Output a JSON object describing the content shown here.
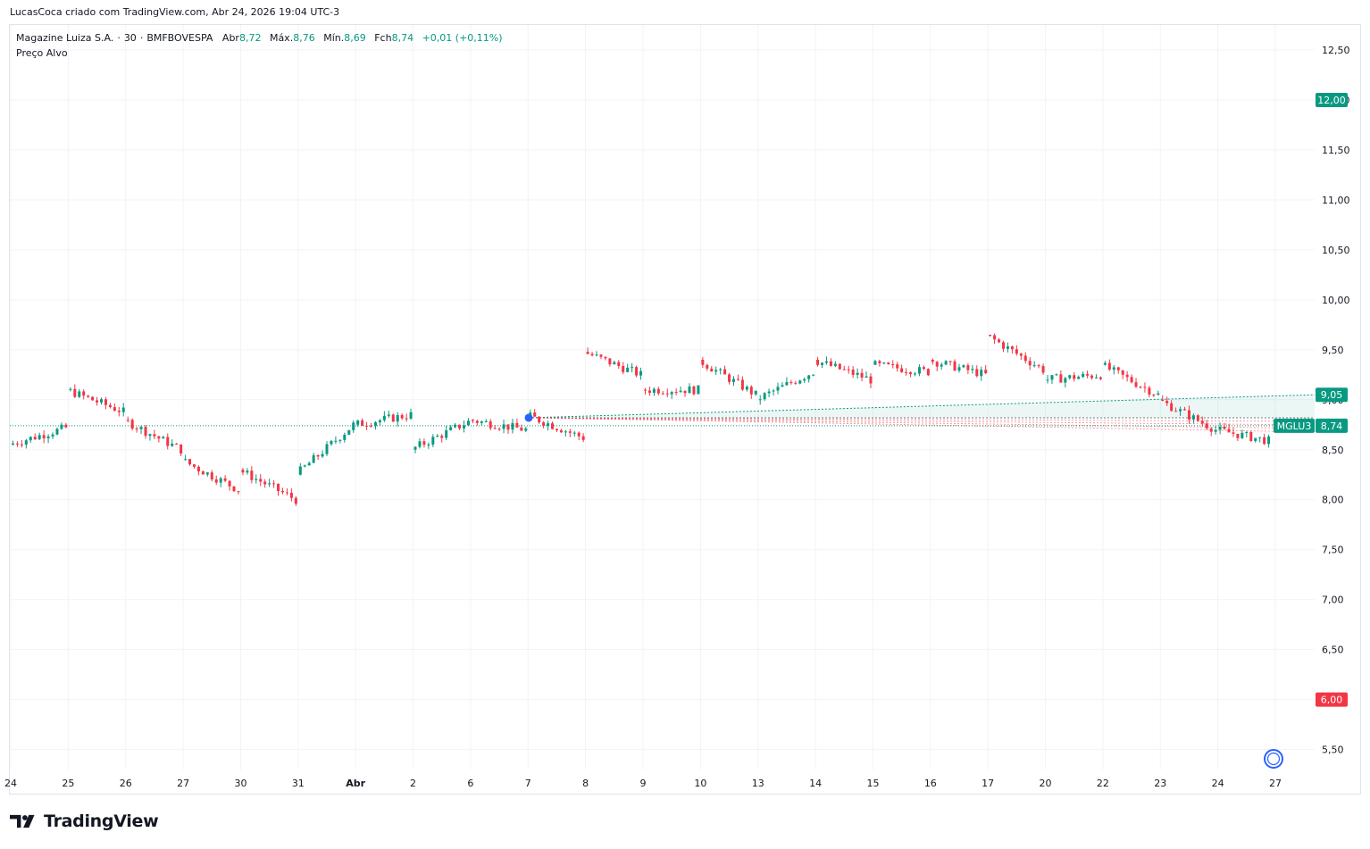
{
  "header": {
    "attribution": "LucasCoca criado com TradingView.com, Abr 24, 2026 19:04 UTC-3"
  },
  "legend": {
    "symbol_name": "Magazine Luiza S.A.",
    "interval": "30",
    "exchange": "BMFBOVESPA",
    "open_label": "Abr",
    "open_value": "8,72",
    "high_label": "Máx.",
    "high_value": "8,76",
    "low_label": "Mín.",
    "low_value": "8,69",
    "close_label": "Fch",
    "close_value": "8,74",
    "change": "+0,01 (+0,11%)",
    "indicator": "Preço Alvo"
  },
  "brand": {
    "name": "TradingView"
  },
  "colors": {
    "up": "#089981",
    "down": "#f23645",
    "grid": "#f0f3fa",
    "target_up": "#089981",
    "target_down": "#f23645",
    "marker": "#2962ff"
  },
  "chart_data": {
    "type": "candlestick",
    "symbol": "MGLU3",
    "ylim": [
      5.3,
      12.75
    ],
    "y_ticks": [
      "12,50",
      "12,00",
      "11,50",
      "11,00",
      "10,50",
      "10,00",
      "9,50",
      "9,00",
      "8,50",
      "8,00",
      "7,50",
      "7,00",
      "6,50",
      "6,00",
      "5,50"
    ],
    "y_tick_values": [
      12.5,
      12.0,
      11.5,
      11.0,
      10.5,
      10.0,
      9.5,
      9.0,
      8.5,
      8.0,
      7.5,
      7.0,
      6.5,
      6.0,
      5.5
    ],
    "x_ticks": [
      "24",
      "25",
      "26",
      "27",
      "30",
      "31",
      "Abr",
      "2",
      "6",
      "7",
      "8",
      "9",
      "10",
      "13",
      "14",
      "15",
      "16",
      "17",
      "20",
      "22",
      "23",
      "24",
      "27"
    ],
    "last_price": 8.74,
    "last_price_label": "8,74",
    "symbol_label": "MGLU3",
    "target_high": 12.0,
    "target_high_label": "12,00",
    "target_avg": 9.05,
    "target_avg_label": "9,05",
    "target_low": 6.0,
    "target_low_label": "6,00",
    "target_start_price": 8.82,
    "daily_path": [
      {
        "day": "24",
        "o": 8.55,
        "c": 8.72
      },
      {
        "day": "25",
        "o": 9.1,
        "c": 8.88
      },
      {
        "day": "26",
        "o": 8.8,
        "c": 8.5
      },
      {
        "day": "27",
        "o": 8.4,
        "c": 8.1
      },
      {
        "day": "30",
        "o": 8.3,
        "c": 8.0
      },
      {
        "day": "31",
        "o": 8.25,
        "c": 8.75
      },
      {
        "day": "Abr",
        "o": 8.75,
        "c": 8.85
      },
      {
        "day": "2",
        "o": 8.5,
        "c": 8.78
      },
      {
        "day": "6",
        "o": 8.8,
        "c": 8.7
      },
      {
        "day": "7",
        "o": 8.85,
        "c": 8.62
      },
      {
        "day": "8",
        "o": 9.48,
        "c": 9.25
      },
      {
        "day": "9",
        "o": 9.1,
        "c": 9.1
      },
      {
        "day": "10",
        "o": 9.4,
        "c": 9.05
      },
      {
        "day": "13",
        "o": 9.0,
        "c": 9.28
      },
      {
        "day": "14",
        "o": 9.4,
        "c": 9.2
      },
      {
        "day": "15",
        "o": 9.35,
        "c": 9.28
      },
      {
        "day": "16",
        "o": 9.4,
        "c": 9.25
      },
      {
        "day": "17",
        "o": 9.65,
        "c": 9.3
      },
      {
        "day": "20",
        "o": 9.2,
        "c": 9.25
      },
      {
        "day": "22",
        "o": 9.35,
        "c": 9.05
      },
      {
        "day": "23",
        "o": 9.0,
        "c": 8.7
      },
      {
        "day": "24",
        "o": 8.7,
        "c": 8.58
      },
      {
        "day": "27",
        "o": 8.62,
        "c": 8.74
      }
    ]
  }
}
